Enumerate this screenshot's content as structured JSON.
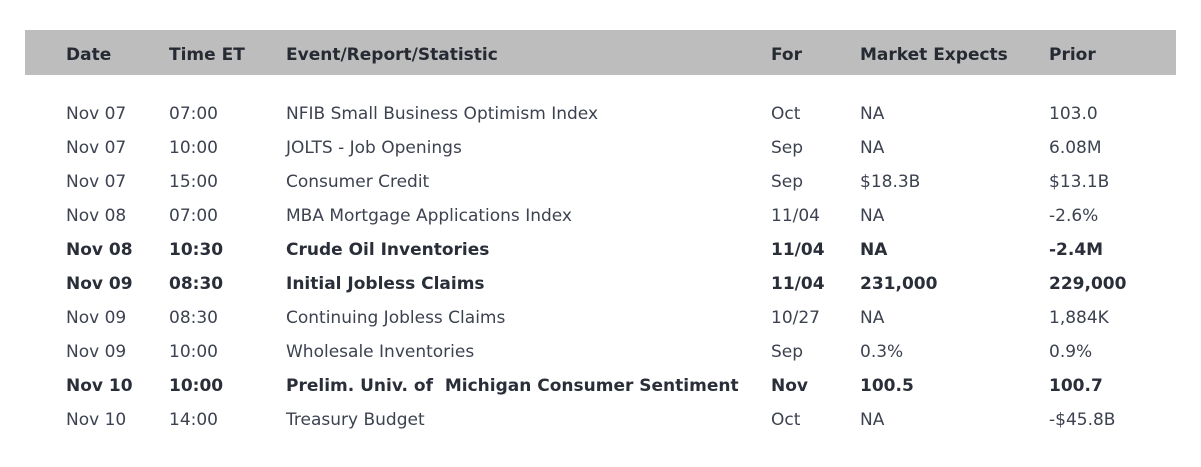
{
  "header": {
    "date": "Date",
    "time": "Time ET",
    "event": "Event/Report/Statistic",
    "for": "For",
    "expects": "Market Expects",
    "prior": "Prior"
  },
  "rows": [
    {
      "date": "Nov 07",
      "time": "07:00",
      "event": "NFIB Small Business Optimism Index",
      "for": "Oct",
      "expects": "NA",
      "prior": "103.0",
      "bold": false
    },
    {
      "date": "Nov 07",
      "time": "10:00",
      "event": "JOLTS - Job Openings",
      "for": "Sep",
      "expects": "NA",
      "prior": "6.08M",
      "bold": false
    },
    {
      "date": "Nov 07",
      "time": "15:00",
      "event": "Consumer Credit",
      "for": "Sep",
      "expects": "$18.3B",
      "prior": "$13.1B",
      "bold": false
    },
    {
      "date": "Nov 08",
      "time": "07:00",
      "event": "MBA Mortgage Applications Index",
      "for": "11/04",
      "expects": "NA",
      "prior": "-2.6%",
      "bold": false
    },
    {
      "date": "Nov 08",
      "time": "10:30",
      "event": "Crude Oil Inventories",
      "for": "11/04",
      "expects": "NA",
      "prior": "-2.4M",
      "bold": true
    },
    {
      "date": "Nov 09",
      "time": "08:30",
      "event": "Initial Jobless Claims",
      "for": "11/04",
      "expects": "231,000",
      "prior": "229,000",
      "bold": true
    },
    {
      "date": "Nov 09",
      "time": "08:30",
      "event": "Continuing Jobless Claims",
      "for": "10/27",
      "expects": "NA",
      "prior": "1,884K",
      "bold": false
    },
    {
      "date": "Nov 09",
      "time": "10:00",
      "event": "Wholesale Inventories",
      "for": "Sep",
      "expects": "0.3%",
      "prior": "0.9%",
      "bold": false
    },
    {
      "date": "Nov 10",
      "time": "10:00",
      "event": "Prelim. Univ. of  Michigan Consumer Sentiment",
      "for": "Nov",
      "expects": "100.5",
      "prior": "100.7",
      "bold": true
    },
    {
      "date": "Nov 10",
      "time": "14:00",
      "event": "Treasury Budget",
      "for": "Oct",
      "expects": "NA",
      "prior": "-$45.8B",
      "bold": false
    }
  ]
}
